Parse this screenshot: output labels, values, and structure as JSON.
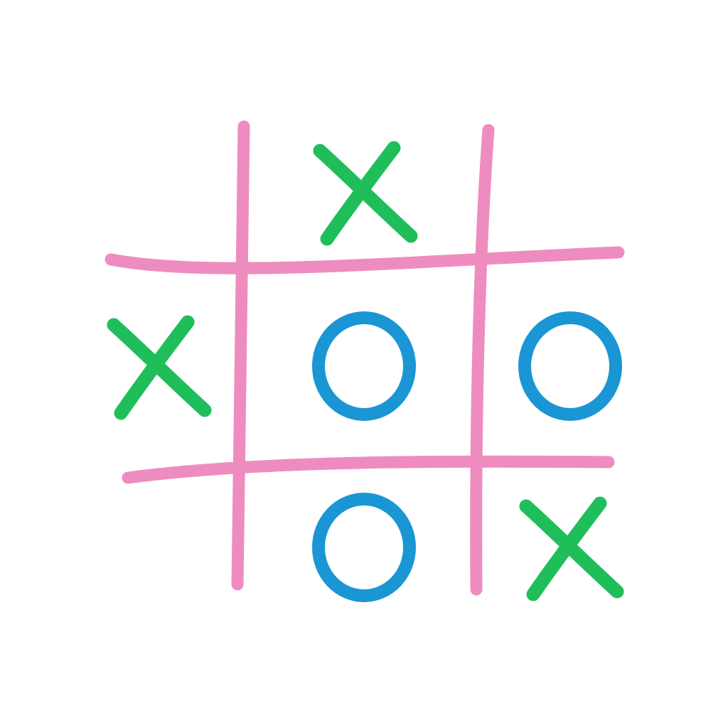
{
  "board": {
    "cells": [
      [
        "",
        "X",
        ""
      ],
      [
        "X",
        "O",
        "O"
      ],
      [
        "",
        "O",
        "X"
      ]
    ]
  },
  "colors": {
    "background": "#ffffff",
    "grid": "#ee8cbf",
    "x_mark": "#1fbe5a",
    "o_mark": "#1a96d4",
    "watermark": "#e8e8e8"
  },
  "icons": {
    "x_mark": "x-mark-icon",
    "o_mark": "o-mark-icon"
  }
}
